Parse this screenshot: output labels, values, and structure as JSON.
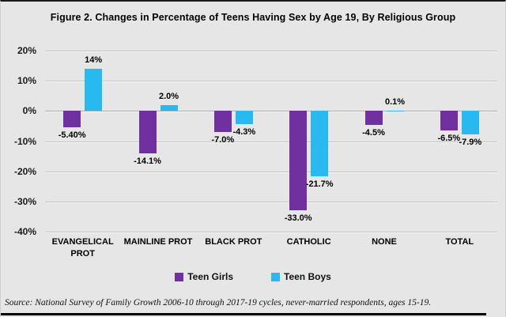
{
  "title": "Figure 2. Changes in Percentage of Teens Having Sex by Age 19, By Religious Group",
  "source_note": "Source: National Survey of Family Growth 2006-10 through 2017-19 cycles, never-married respondents, ages 15-19.",
  "colors": {
    "teen_girls": "#7030A0",
    "teen_boys": "#29B9F1",
    "background": "#E6E6E6",
    "gridline": "#C3C3C3",
    "zero_line": "#ABABAB"
  },
  "chart_data": {
    "type": "bar",
    "title": "Figure 2. Changes in Percentage of Teens Having Sex by Age 19, By Religious Group",
    "categories": [
      "EVANGELICAL PROT",
      "MAINLINE PROT",
      "BLACK PROT",
      "CATHOLIC",
      "NONE",
      "TOTAL"
    ],
    "category_lines": [
      [
        "EVANGELICAL",
        "PROT"
      ],
      [
        "MAINLINE PROT"
      ],
      [
        "BLACK PROT"
      ],
      [
        "CATHOLIC"
      ],
      [
        "NONE"
      ],
      [
        "TOTAL"
      ]
    ],
    "series": [
      {
        "name": "Teen Girls",
        "color": "#7030A0",
        "values": [
          -5.4,
          -14.1,
          -7.0,
          -33.0,
          -4.5,
          -6.5
        ],
        "labels": [
          "-5.40%",
          "-14.1%",
          "-7.0%",
          "-33.0%",
          "-4.5%",
          "-6.5%"
        ]
      },
      {
        "name": "Teen Boys",
        "color": "#29B9F1",
        "values": [
          14,
          2.0,
          -4.3,
          -21.7,
          0.1,
          -7.9
        ],
        "labels": [
          "14%",
          "2.0%",
          "-4.3%",
          "-21.7%",
          "0.1%",
          "-7.9%"
        ]
      }
    ],
    "y_axis": {
      "min": -40,
      "max": 20,
      "step": 10,
      "tick_labels": [
        "20%",
        "10%",
        "0%",
        "-10%",
        "-20%",
        "-30%",
        "-40%"
      ]
    },
    "legend": {
      "position": "bottom",
      "entries": [
        "Teen Girls",
        "Teen Boys"
      ]
    },
    "grid": true
  }
}
